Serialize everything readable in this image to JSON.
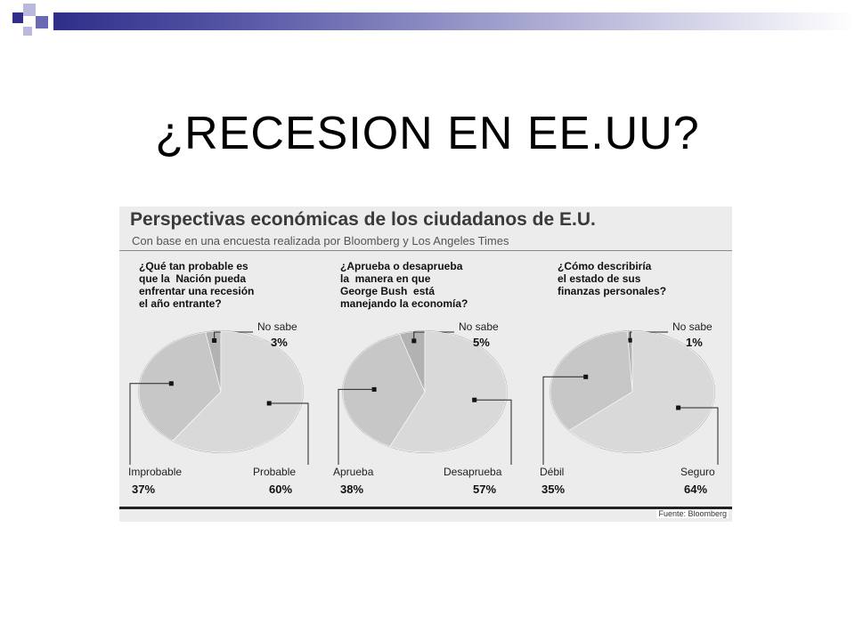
{
  "slide": {
    "title": "¿RECESION EN EE.UU?"
  },
  "figure": {
    "title": "Perspectivas económicas de los ciudadanos de E.U.",
    "subtitle": "Con base en una encuesta realizada por Bloomberg y Los Angeles Times",
    "source": "Fuente: Bloomberg"
  },
  "colors": {
    "accent_dark": "#2e2e8a",
    "accent_mid": "#6a6ab3",
    "slice_light": "#d9d9d9",
    "slice_mid": "#c7c7c7",
    "slice_dark": "#b2b2b2",
    "outline": "#9a9a9a"
  },
  "chart_data": [
    {
      "type": "pie",
      "title": "¿Qué tan probable es\nque la  Nación pueda\nenfrentar una recesión\nel año entrante?",
      "slices": [
        {
          "label": "No sabe",
          "value": 3,
          "display": "3%"
        },
        {
          "label": "Probable",
          "value": 60,
          "display": "60%"
        },
        {
          "label": "Improbable",
          "value": 37,
          "display": "37%"
        }
      ]
    },
    {
      "type": "pie",
      "title": "¿Aprueba o desaprueba\nla  manera en que\nGeorge Bush  está\nmanejando la economía?",
      "slices": [
        {
          "label": "No sabe",
          "value": 5,
          "display": "5%"
        },
        {
          "label": "Desaprueba",
          "value": 57,
          "display": "57%"
        },
        {
          "label": "Aprueba",
          "value": 38,
          "display": "38%"
        }
      ]
    },
    {
      "type": "pie",
      "title": "¿Cómo describiría\nel estado de sus\nfinanzas personales?",
      "slices": [
        {
          "label": "No sabe",
          "value": 1,
          "display": "1%"
        },
        {
          "label": "Seguro",
          "value": 64,
          "display": "64%"
        },
        {
          "label": "Débil",
          "value": 35,
          "display": "35%"
        }
      ]
    }
  ]
}
